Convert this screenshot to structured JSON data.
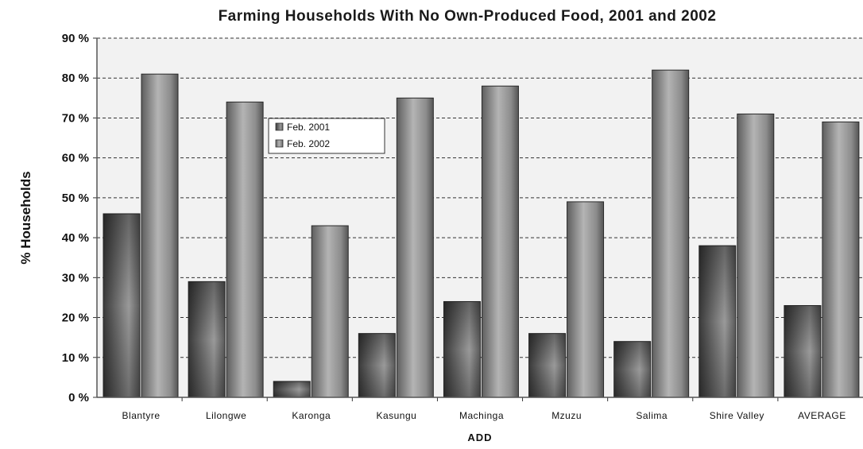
{
  "chart_data": {
    "type": "bar",
    "title": "Farming Households With No Own-Produced Food, 2001 and 2002",
    "xlabel": "ADD",
    "ylabel": "% Households",
    "categories": [
      "Blantyre",
      "Lilongwe",
      "Karonga",
      "Kasungu",
      "Machinga",
      "Mzuzu",
      "Salima",
      "Shire Valley",
      "AVERAGE"
    ],
    "series": [
      {
        "name": "Feb. 2001",
        "values": [
          46,
          29,
          4,
          16,
          24,
          16,
          14,
          38,
          23
        ]
      },
      {
        "name": "Feb. 2002",
        "values": [
          81,
          74,
          43,
          75,
          78,
          49,
          82,
          71,
          69
        ]
      }
    ],
    "ylim": [
      0,
      90
    ],
    "yticks": [
      "0 %",
      "10 %",
      "20 %",
      "30 %",
      "40 %",
      "50 %",
      "60 %",
      "70 %",
      "80 %",
      "90 %"
    ],
    "grid": true,
    "legend": "top-left"
  }
}
